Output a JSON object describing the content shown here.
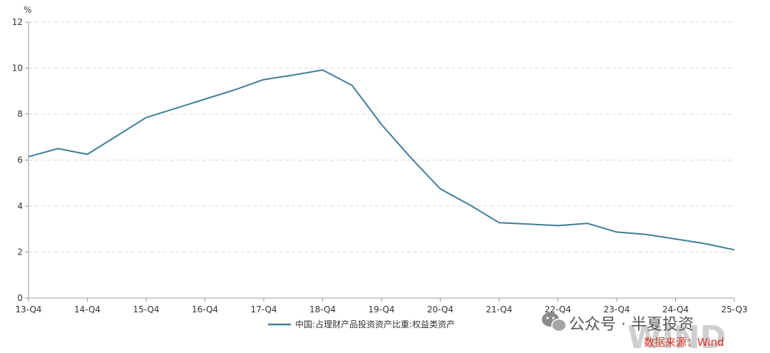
{
  "chart_data": {
    "type": "line",
    "y_unit": "%",
    "ylim": [
      0,
      12
    ],
    "y_ticks": [
      0,
      2,
      4,
      6,
      8,
      10,
      12
    ],
    "x_tick_labels": [
      "13-Q4",
      "14-Q4",
      "15-Q4",
      "16-Q4",
      "17-Q4",
      "18-Q4",
      "19-Q4",
      "20-Q4",
      "21-Q4",
      "22-Q4",
      "23-Q4",
      "24-Q4",
      "25-Q3"
    ],
    "x": [
      "13-Q4",
      "14-Q2",
      "14-Q4",
      "15-Q2",
      "15-Q4",
      "16-Q2",
      "16-Q4",
      "17-Q2",
      "17-Q4",
      "18-Q2",
      "18-Q4",
      "19-Q2",
      "19-Q4",
      "20-Q2",
      "20-Q4",
      "21-Q2",
      "21-Q4",
      "22-Q2",
      "22-Q4",
      "23-Q2",
      "23-Q4",
      "24-Q2",
      "24-Q4",
      "25-Q2",
      "25-Q3"
    ],
    "series": [
      {
        "name": "中国:占理财产品投资资产比重:权益类资产",
        "color": "#3f7d99",
        "values": [
          6.15,
          6.5,
          6.25,
          7.05,
          7.85,
          8.25,
          8.65,
          9.05,
          9.5,
          9.7,
          9.92,
          9.25,
          7.55,
          6.1,
          4.75,
          4.05,
          3.28,
          3.22,
          3.15,
          3.25,
          2.87,
          2.77,
          2.57,
          2.37,
          2.1
        ]
      }
    ],
    "grid": true,
    "legend_position": "bottom-center"
  },
  "source": {
    "label": "数据来源：Wind",
    "color": "#d93025"
  },
  "watermark": {
    "text": "公众号 · 半夏投资",
    "icon": "wechat-icon"
  }
}
